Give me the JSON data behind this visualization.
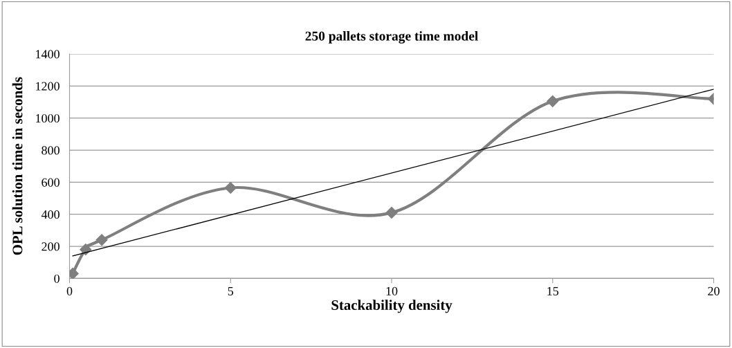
{
  "chart_data": {
    "type": "line",
    "title": "250 pallets storage time model",
    "xlabel": "Stackability density",
    "ylabel": "OPL solution time in seconds",
    "xlim": [
      0,
      20
    ],
    "xticks": [
      0,
      5,
      10,
      15,
      20
    ],
    "ylim": [
      0,
      1400
    ],
    "yticks": [
      0,
      200,
      400,
      600,
      800,
      1000,
      1200,
      1400
    ],
    "grid": "y",
    "legend": false,
    "series": [
      {
        "color": "#7f7f7f",
        "marker": "diamond",
        "x": [
          0.1,
          0.5,
          1,
          5,
          10,
          15,
          20
        ],
        "values": [
          30,
          180,
          240,
          565,
          410,
          1105,
          1120
        ]
      },
      {
        "color": "#000000",
        "marker": "none",
        "x": [
          0.1,
          20
        ],
        "values": [
          140,
          1180
        ]
      }
    ]
  }
}
